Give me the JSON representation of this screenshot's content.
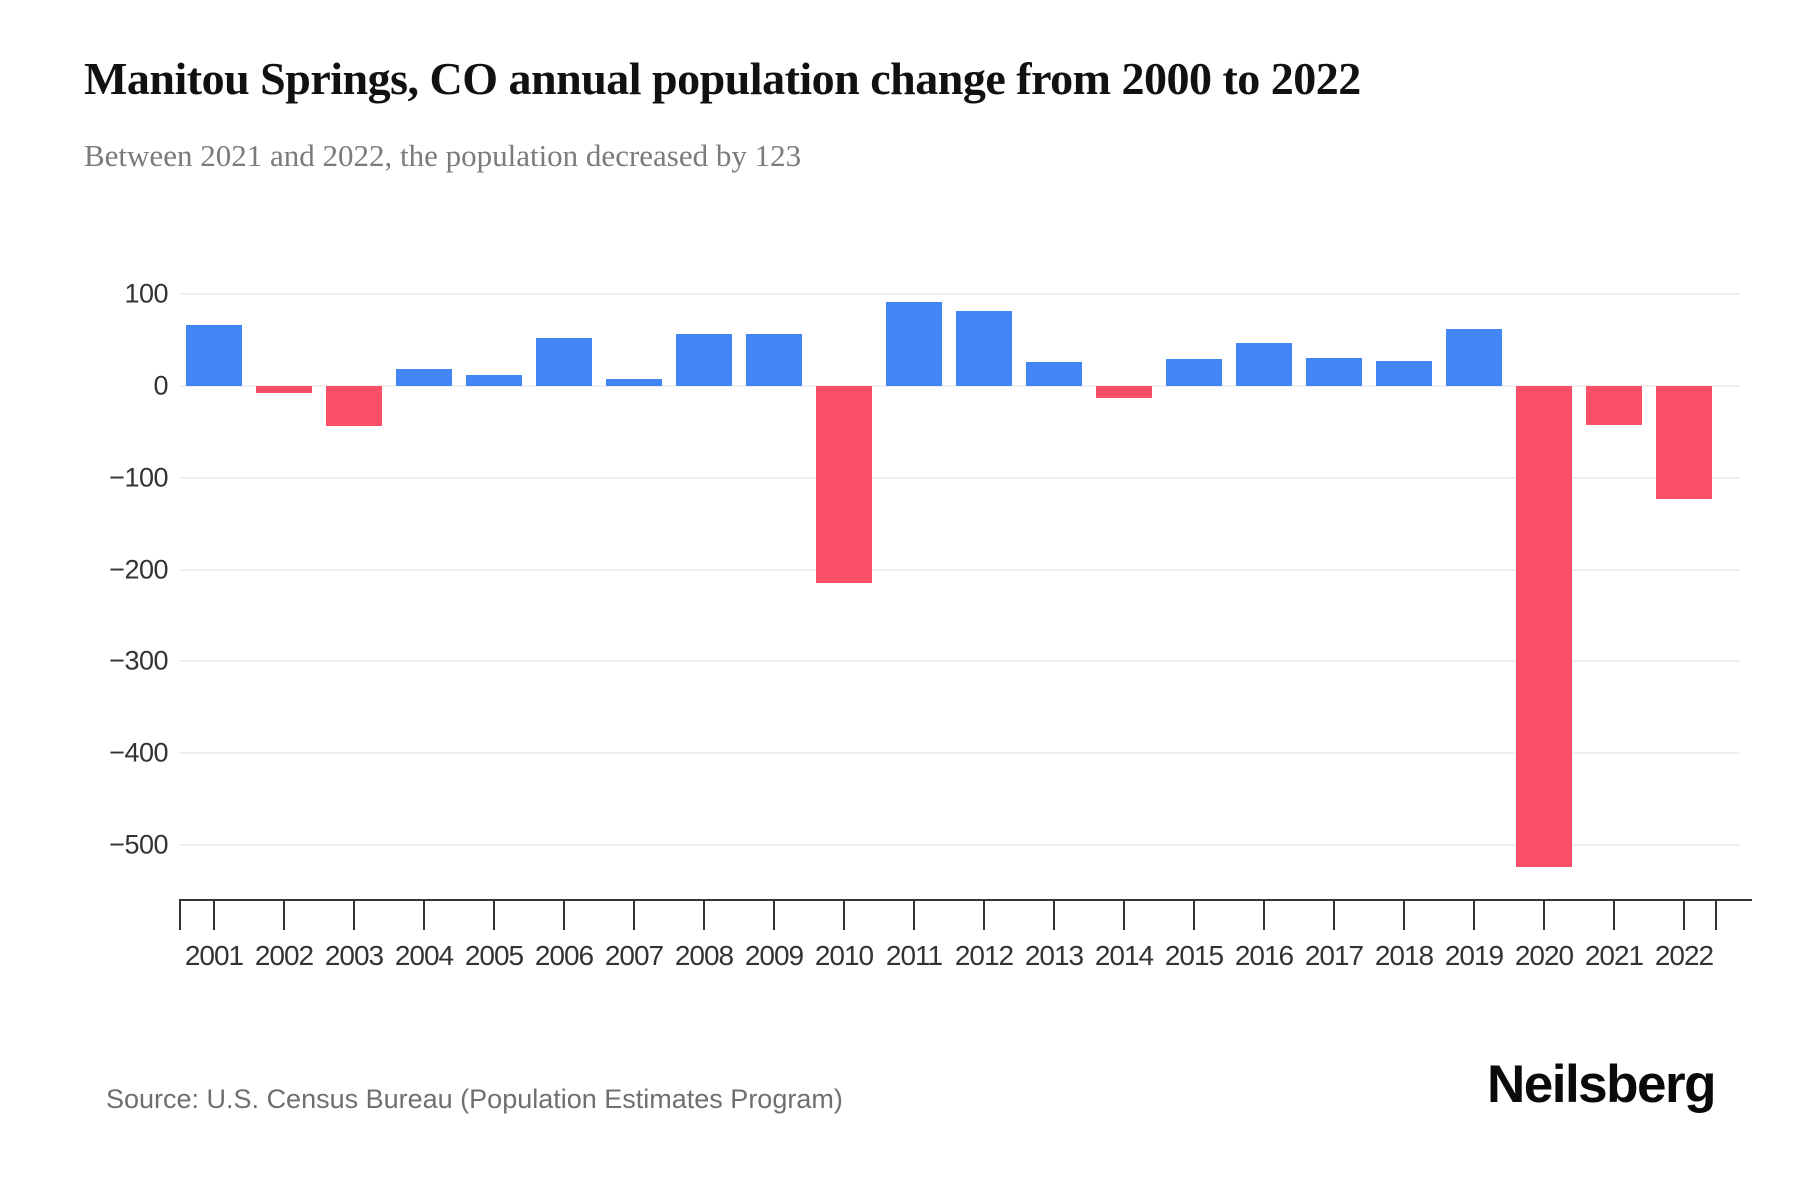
{
  "header": {
    "title": "Manitou Springs, CO annual population change from 2000 to 2022",
    "subtitle": "Between 2021 and 2022, the population decreased by 123"
  },
  "footer": {
    "source": "Source: U.S. Census Bureau (Population Estimates Program)",
    "brand": "Neilsberg"
  },
  "chart_data": {
    "type": "bar",
    "title": "Manitou Springs, CO annual population change from 2000 to 2022",
    "subtitle": "Between 2021 and 2022, the population decreased by 123",
    "categories": [
      "2001",
      "2002",
      "2003",
      "2004",
      "2005",
      "2006",
      "2007",
      "2008",
      "2009",
      "2010",
      "2011",
      "2012",
      "2013",
      "2014",
      "2015",
      "2016",
      "2017",
      "2018",
      "2019",
      "2020",
      "2021",
      "2022"
    ],
    "values": [
      66,
      -8,
      -44,
      19,
      12,
      52,
      8,
      57,
      57,
      -215,
      92,
      82,
      26,
      -13,
      29,
      47,
      31,
      27,
      62,
      -524,
      -43,
      -123
    ],
    "xlabel": "",
    "ylabel": "",
    "ylim": [
      -560,
      115
    ],
    "yticks": [
      100,
      0,
      -100,
      -200,
      -300,
      -400,
      -500
    ],
    "grid": "horizontal",
    "legend_position": "none",
    "positive_color": "#4285F4",
    "negative_color": "#FA4F67",
    "gridline_color": "#efefef",
    "axis_color": "#333333",
    "label_color": "#333333"
  }
}
